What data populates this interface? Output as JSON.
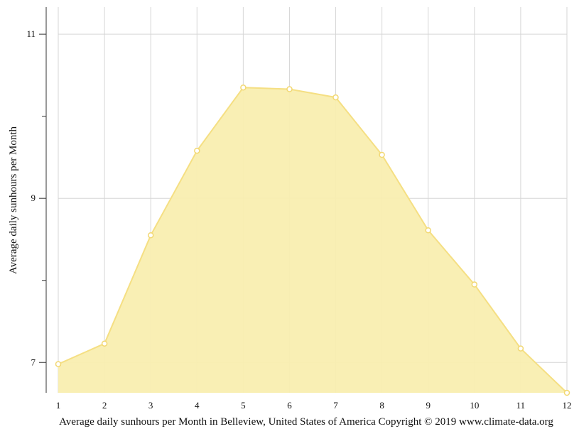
{
  "chart_data": {
    "type": "area",
    "x": [
      1,
      2,
      3,
      4,
      5,
      6,
      7,
      8,
      9,
      10,
      11,
      12
    ],
    "values": [
      6.98,
      7.23,
      8.55,
      9.58,
      10.35,
      10.33,
      10.23,
      9.53,
      8.61,
      7.95,
      7.17,
      6.63
    ],
    "ylabel": "Average daily sunhours per Month",
    "caption": "Average daily sunhours per Month in Belleview, United States of America Copyright © 2019 www.climate-data.org",
    "xlim": [
      1,
      12
    ],
    "ylim": [
      6.63,
      11.33
    ],
    "y_tick_labels": [
      "7",
      "9",
      "11"
    ],
    "y_tick_values": [
      7,
      9,
      11
    ],
    "y_minor_ticks": [
      8,
      10
    ],
    "x_tick_labels": [
      "1",
      "2",
      "3",
      "4",
      "5",
      "6",
      "7",
      "8",
      "9",
      "10",
      "11",
      "12"
    ],
    "grid": true,
    "colors": {
      "fill": "#f9eeb0",
      "line": "#f5df83",
      "marker_fill": "#ffffff",
      "marker_stroke": "#f2d873",
      "grid": "#d6d6d6",
      "axis": "#333333"
    }
  }
}
